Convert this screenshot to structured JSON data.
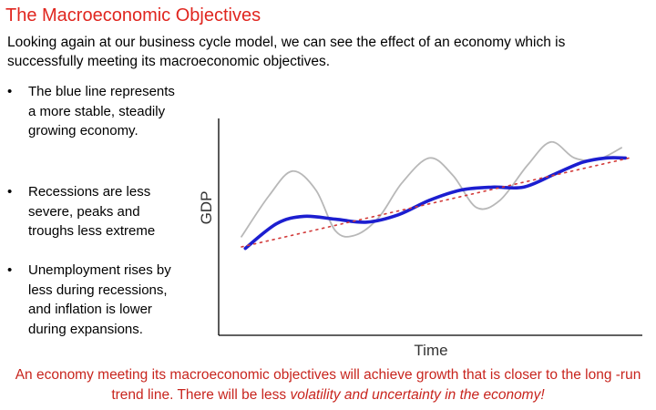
{
  "slide": {
    "title": "The Macroeconomic Objectives",
    "intro": "Looking again at our business cycle model, we can see the effect of an economy which is successfully meeting its macroeconomic objectives.",
    "bullet_glyph": "•",
    "bullets": [
      "The blue line represents a more stable, steadily growing economy.",
      "Recessions are less severe, peaks and troughs less extreme",
      "Unemployment rises by less during recessions, and inflation is lower during expansions."
    ],
    "footer": {
      "text_plain": "An economy meeting its macroeconomic objectives will achieve growth that is closer to the long -run trend line. There will be less ",
      "text_italic": "volatility and uncertainty in the economy!"
    }
  },
  "chart_data": {
    "type": "line",
    "title": "",
    "xlabel": "Time",
    "ylabel": "GDP",
    "xlim": [
      0,
      10
    ],
    "ylim": [
      0,
      10
    ],
    "grid": false,
    "legend": "none",
    "series": [
      {
        "name": "Volatile business cycle",
        "style": "thin gray",
        "color": "#b8b8b8",
        "x": [
          0.0,
          0.7,
          1.3,
          1.9,
          2.4,
          2.9,
          3.5,
          4.1,
          4.8,
          5.4,
          6.0,
          6.6,
          7.3,
          7.9,
          8.5,
          9.1,
          9.7
        ],
        "y": [
          2.2,
          5.0,
          6.7,
          5.4,
          2.6,
          2.3,
          3.5,
          5.9,
          7.6,
          6.4,
          4.2,
          4.7,
          7.1,
          8.7,
          7.6,
          7.5,
          8.3
        ]
      },
      {
        "name": "Stable growing economy",
        "style": "thick blue",
        "color": "#1c1ed0",
        "x": [
          0.1,
          0.9,
          1.6,
          2.4,
          3.2,
          4.0,
          4.8,
          5.6,
          6.4,
          7.2,
          8.0,
          8.7,
          9.3,
          9.8
        ],
        "y": [
          1.4,
          3.1,
          3.6,
          3.4,
          3.2,
          3.7,
          4.7,
          5.4,
          5.6,
          5.6,
          6.5,
          7.3,
          7.6,
          7.6
        ]
      },
      {
        "name": "Long-run trend line",
        "style": "dotted red",
        "color": "#d23a3a",
        "x": [
          0.0,
          9.9
        ],
        "y": [
          1.5,
          7.6
        ]
      }
    ]
  }
}
